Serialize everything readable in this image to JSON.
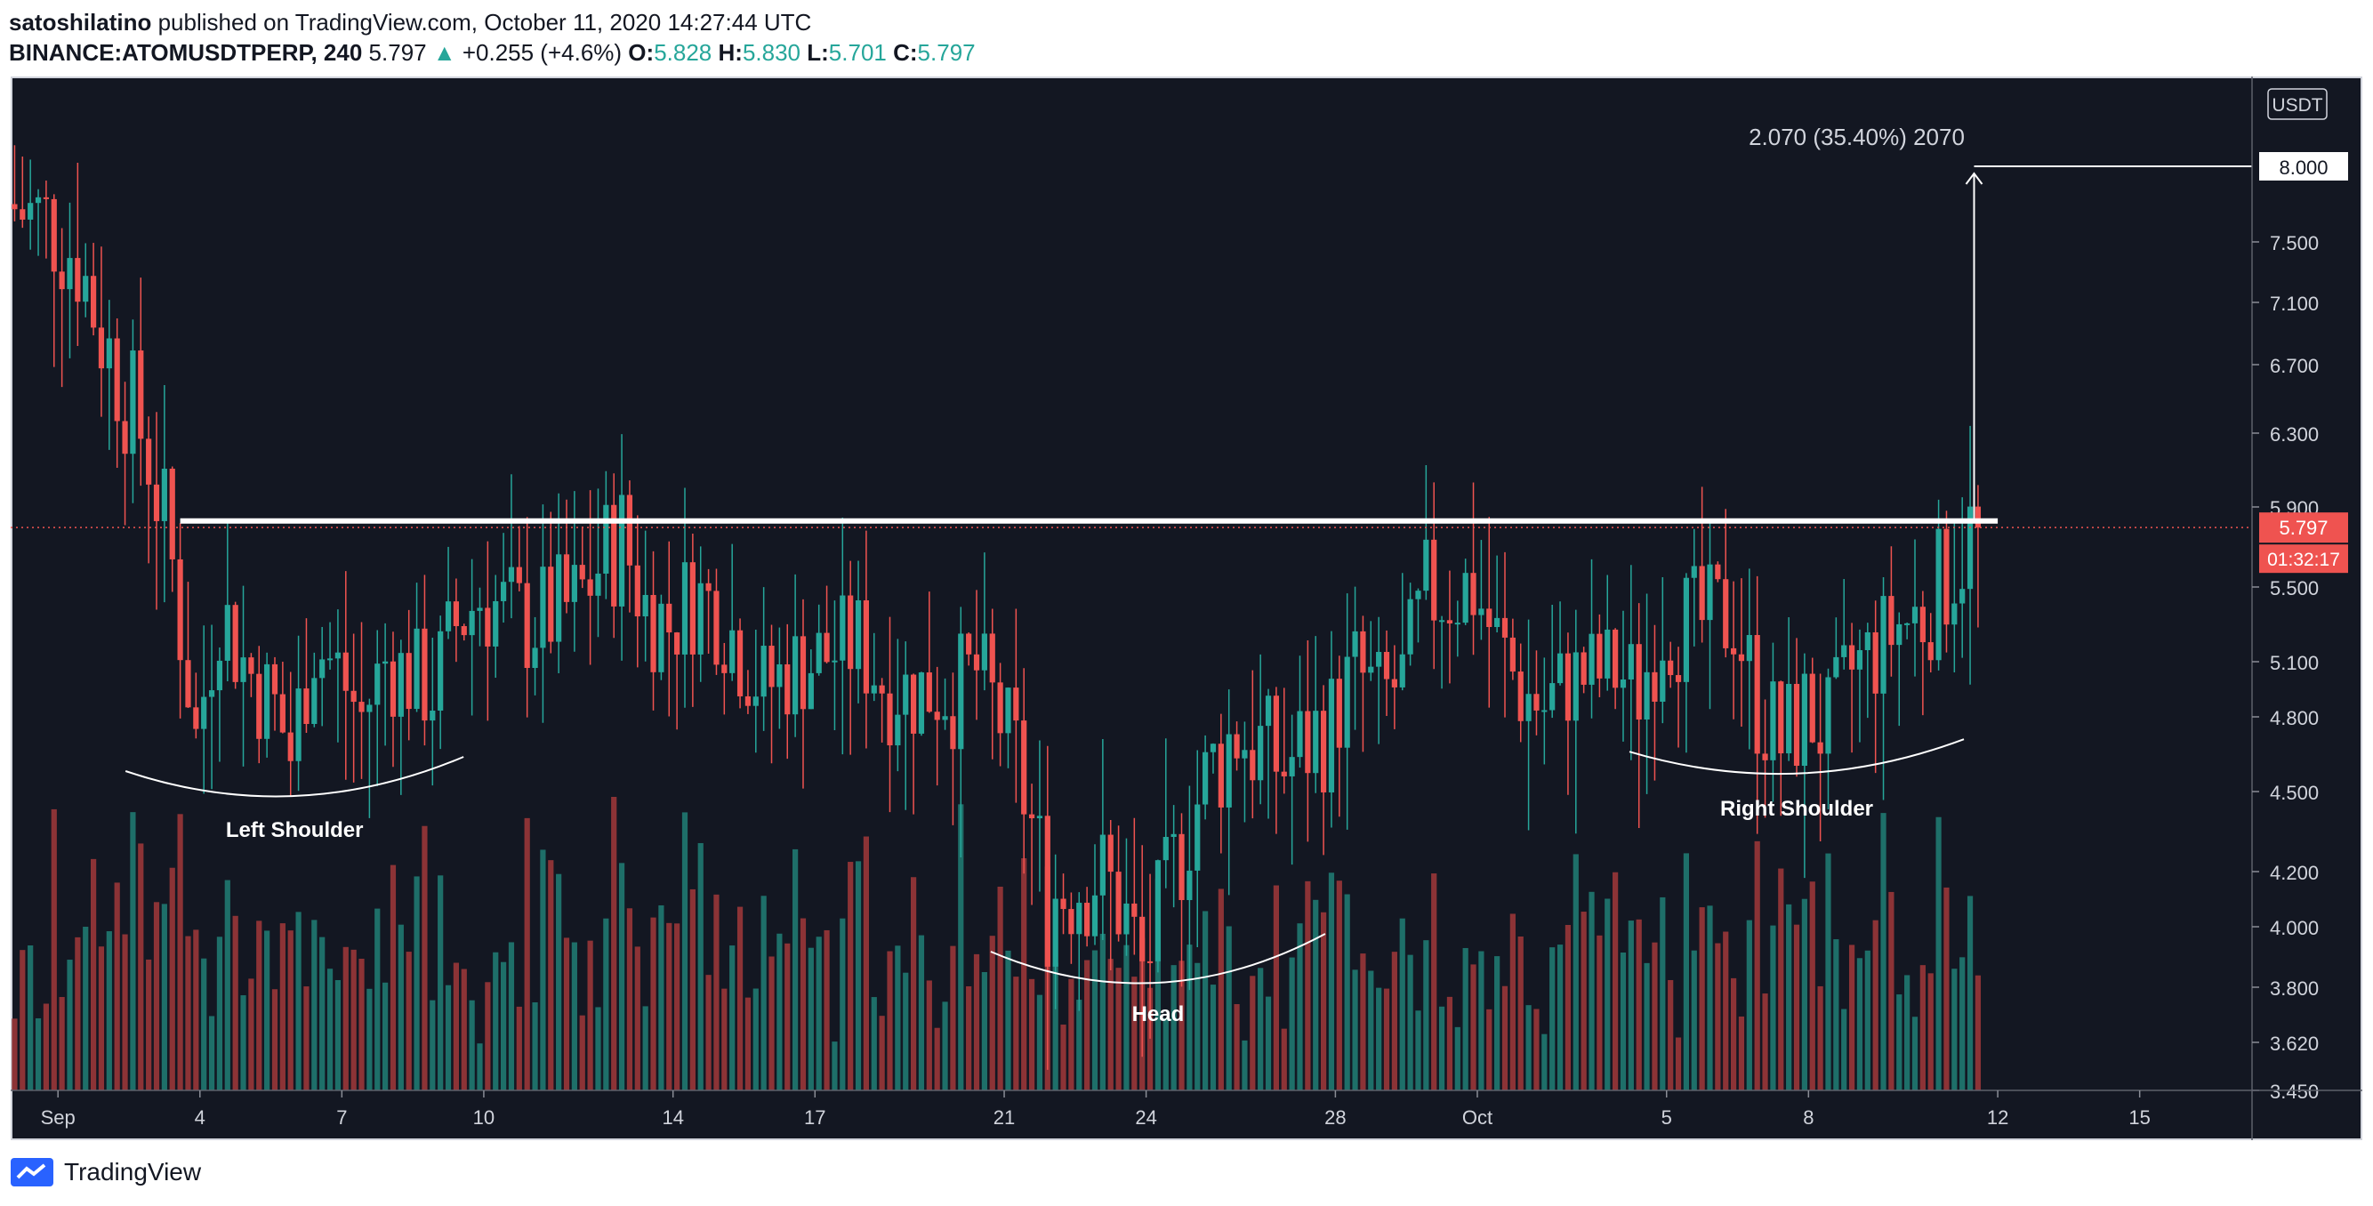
{
  "header": {
    "author": "satoshilatino",
    "published_on": "published on TradingView.com, October 11, 2020 14:27:44 UTC",
    "symbol": "BINANCE:ATOMUSDTPERP, 240",
    "last": "5.797",
    "change": "+0.255 (+4.6%)",
    "o_label": "O:",
    "o": "5.828",
    "h_label": "H:",
    "h": "5.830",
    "l_label": "L:",
    "l": "5.701",
    "c_label": "C:",
    "c": "5.797"
  },
  "footer": {
    "brand": "TradingView"
  },
  "colors": {
    "background": "#131722",
    "up": "#26a69a",
    "down": "#ef5350",
    "vol_up": "#1e6f69",
    "vol_down": "#8c3336",
    "annotation": "#ffffff",
    "last_price_bg": "#ef5350"
  },
  "chart_data": {
    "type": "candlestick",
    "currency_label": "USDT",
    "y_ticks": [
      3.45,
      3.62,
      3.8,
      4.0,
      4.2,
      4.5,
      4.8,
      5.1,
      5.5,
      5.9,
      6.3,
      6.7,
      7.1,
      7.5
    ],
    "y_tick_labels": [
      "3.450",
      "3.620",
      "3.800",
      "4.000",
      "4.200",
      "4.500",
      "4.800",
      "5.100",
      "5.500",
      "5.900",
      "6.300",
      "6.700",
      "7.100",
      "7.500"
    ],
    "x_ticks": [
      {
        "label": "Sep",
        "date": "2020-09-01"
      },
      {
        "label": "4",
        "date": "2020-09-04"
      },
      {
        "label": "7",
        "date": "2020-09-07"
      },
      {
        "label": "10",
        "date": "2020-09-10"
      },
      {
        "label": "14",
        "date": "2020-09-14"
      },
      {
        "label": "17",
        "date": "2020-09-17"
      },
      {
        "label": "21",
        "date": "2020-09-21"
      },
      {
        "label": "24",
        "date": "2020-09-24"
      },
      {
        "label": "28",
        "date": "2020-09-28"
      },
      {
        "label": "Oct",
        "date": "2020-10-01"
      },
      {
        "label": "5",
        "date": "2020-10-05"
      },
      {
        "label": "8",
        "date": "2020-10-08"
      },
      {
        "label": "12",
        "date": "2020-10-12"
      },
      {
        "label": "15",
        "date": "2020-10-15"
      }
    ],
    "last_price": "5.797",
    "last_price_value": 5.797,
    "countdown": "01:32:17",
    "target_price": "8.000",
    "target_value": 8.0,
    "measure_label": "2.070 (35.40%) 2070",
    "neckline": {
      "price": 5.83,
      "start": "2020-09-03",
      "end": "2020-10-12"
    },
    "price_path": [
      {
        "date": "2020-08-31",
        "close": 7.75
      },
      {
        "date": "2020-09-01",
        "close": 7.6
      },
      {
        "date": "2020-09-01T12:00",
        "close": 7.4
      },
      {
        "date": "2020-09-02",
        "close": 6.9
      },
      {
        "date": "2020-09-02T12:00",
        "close": 6.55
      },
      {
        "date": "2020-09-03",
        "close": 6.2
      },
      {
        "date": "2020-09-03T12:00",
        "close": 5.6
      },
      {
        "date": "2020-09-04",
        "close": 4.7
      },
      {
        "date": "2020-09-04T12:00",
        "close": 5.4
      },
      {
        "date": "2020-09-05",
        "close": 5.1
      },
      {
        "date": "2020-09-05T16:00",
        "close": 4.85
      },
      {
        "date": "2020-09-06",
        "close": 4.65
      },
      {
        "date": "2020-09-06T12:00",
        "close": 5.2
      },
      {
        "date": "2020-09-07",
        "close": 5.05
      },
      {
        "date": "2020-09-07T12:00",
        "close": 4.8
      },
      {
        "date": "2020-09-08",
        "close": 5.1
      },
      {
        "date": "2020-09-09",
        "close": 4.95
      },
      {
        "date": "2020-09-09T12:00",
        "close": 5.3
      },
      {
        "date": "2020-09-10",
        "close": 5.45
      },
      {
        "date": "2020-09-11",
        "close": 5.3
      },
      {
        "date": "2020-09-12",
        "close": 5.4
      },
      {
        "date": "2020-09-12T12:00",
        "close": 5.6
      },
      {
        "date": "2020-09-13",
        "close": 5.75
      },
      {
        "date": "2020-09-13T12:00",
        "close": 5.4
      },
      {
        "date": "2020-09-14",
        "close": 5.3
      },
      {
        "date": "2020-09-14T12:00",
        "close": 5.45
      },
      {
        "date": "2020-09-15",
        "close": 5.4
      },
      {
        "date": "2020-09-16",
        "close": 4.95
      },
      {
        "date": "2020-09-16T12:00",
        "close": 5.05
      },
      {
        "date": "2020-09-17",
        "close": 5.1
      },
      {
        "date": "2020-09-18",
        "close": 5.2
      },
      {
        "date": "2020-09-18T12:00",
        "close": 5.0
      },
      {
        "date": "2020-09-19",
        "close": 4.95
      },
      {
        "date": "2020-09-20",
        "close": 4.95
      },
      {
        "date": "2020-09-20T12:00",
        "close": 5.05
      },
      {
        "date": "2020-09-21",
        "close": 4.8
      },
      {
        "date": "2020-09-21T12:00",
        "close": 4.5
      },
      {
        "date": "2020-09-22",
        "close": 4.1
      },
      {
        "date": "2020-09-22T12:00",
        "close": 4.15
      },
      {
        "date": "2020-09-23",
        "close": 4.2
      },
      {
        "date": "2020-09-23T12:00",
        "close": 4.1
      },
      {
        "date": "2020-09-24",
        "close": 3.85
      },
      {
        "date": "2020-09-24T12:00",
        "close": 4.1
      },
      {
        "date": "2020-09-25",
        "close": 4.4
      },
      {
        "date": "2020-09-25T12:00",
        "close": 4.6
      },
      {
        "date": "2020-09-26",
        "close": 4.75
      },
      {
        "date": "2020-09-27",
        "close": 4.6
      },
      {
        "date": "2020-09-27T12:00",
        "close": 4.7
      },
      {
        "date": "2020-09-28",
        "close": 4.8
      },
      {
        "date": "2020-09-28T12:00",
        "close": 5.05
      },
      {
        "date": "2020-09-29",
        "close": 4.9
      },
      {
        "date": "2020-09-29T12:00",
        "close": 5.0
      },
      {
        "date": "2020-09-30",
        "close": 5.45
      },
      {
        "date": "2020-10-01",
        "close": 5.5
      },
      {
        "date": "2020-10-01T12:00",
        "close": 5.2
      },
      {
        "date": "2020-10-02",
        "close": 4.95
      },
      {
        "date": "2020-10-02T12:00",
        "close": 4.85
      },
      {
        "date": "2020-10-03",
        "close": 5.0
      },
      {
        "date": "2020-10-04",
        "close": 5.05
      },
      {
        "date": "2020-10-04T12:00",
        "close": 4.95
      },
      {
        "date": "2020-10-05",
        "close": 5.3
      },
      {
        "date": "2020-10-06",
        "close": 5.3
      },
      {
        "date": "2020-10-06T12:00",
        "close": 5.35
      },
      {
        "date": "2020-10-07",
        "close": 4.9
      },
      {
        "date": "2020-10-07T12:00",
        "close": 4.7
      },
      {
        "date": "2020-10-08",
        "close": 4.85
      },
      {
        "date": "2020-10-08T12:00",
        "close": 4.75
      },
      {
        "date": "2020-10-09",
        "close": 5.05
      },
      {
        "date": "2020-10-09T12:00",
        "close": 5.15
      },
      {
        "date": "2020-10-10",
        "close": 5.3
      },
      {
        "date": "2020-10-10T12:00",
        "close": 5.35
      },
      {
        "date": "2020-10-11",
        "close": 5.55
      },
      {
        "date": "2020-10-11T14:00",
        "close": 5.797
      }
    ],
    "annotations": [
      {
        "label": "Left Shoulder",
        "center_date": "2020-09-06",
        "low": 4.55
      },
      {
        "label": "Head",
        "center_date": "2020-09-24",
        "low": 3.8
      },
      {
        "label": "Right Shoulder",
        "center_date": "2020-10-08",
        "low": 4.6
      }
    ]
  }
}
